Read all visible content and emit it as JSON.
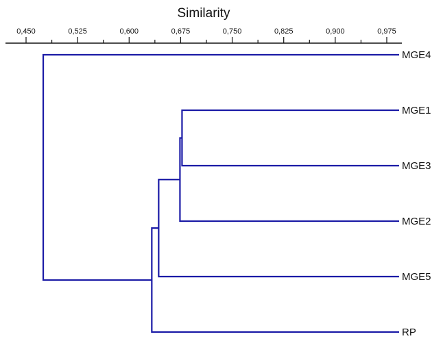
{
  "chart_data": {
    "type": "dendrogram",
    "title": "",
    "xlabel": "Similarity",
    "x_ticks": [
      "0,450",
      "0,525",
      "0,600",
      "0,675",
      "0,750",
      "0,825",
      "0,900",
      "0,975"
    ],
    "x_tick_values": [
      0.45,
      0.525,
      0.6,
      0.675,
      0.75,
      0.825,
      0.9,
      0.975
    ],
    "xlim": [
      0.425,
      0.99
    ],
    "leaves": [
      "MGE4",
      "MGE1",
      "MGE3",
      "MGE2",
      "MGE5",
      "RP"
    ],
    "merges": [
      {
        "id": "n1",
        "children": [
          "MGE1",
          "MGE3"
        ],
        "similarity": 0.677
      },
      {
        "id": "n2",
        "children": [
          "n1",
          "MGE2"
        ],
        "similarity": 0.674
      },
      {
        "id": "n3",
        "children": [
          "n2",
          "MGE5"
        ],
        "similarity": 0.643
      },
      {
        "id": "n4",
        "children": [
          "n3",
          "RP"
        ],
        "similarity": 0.633
      },
      {
        "id": "n5",
        "children": [
          "MGE4",
          "n4"
        ],
        "similarity": 0.475
      }
    ],
    "branch_color": "#1a1aa6"
  }
}
